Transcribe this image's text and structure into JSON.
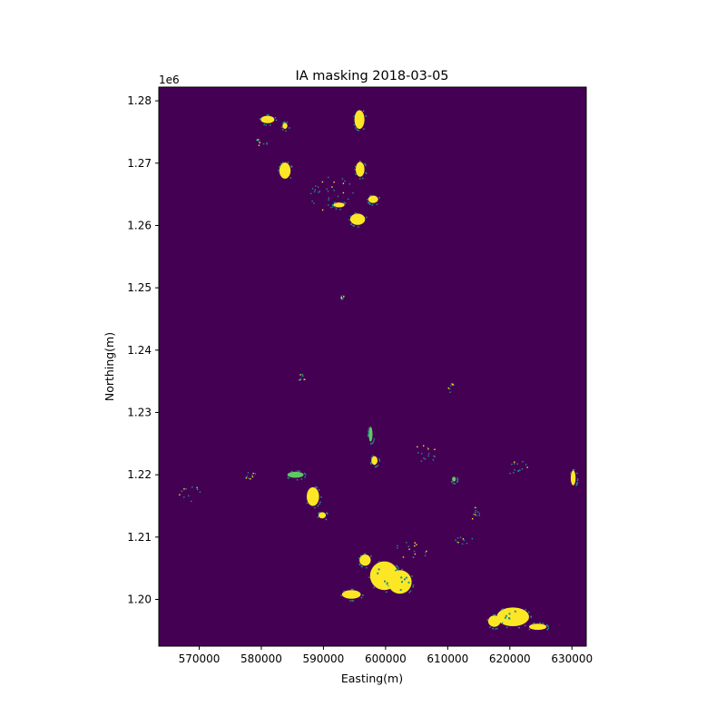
{
  "chart_data": {
    "type": "heatmap",
    "title": "IA masking 2018-03-05",
    "xlabel": "Easting(m)",
    "ylabel": "Northing(m)",
    "y_offset_label": "1e6",
    "xlim": [
      563500,
      632300
    ],
    "ylim": [
      1192500,
      1282200
    ],
    "x_ticks": [
      570000,
      580000,
      590000,
      600000,
      610000,
      620000,
      630000
    ],
    "x_tick_labels": [
      "570000",
      "580000",
      "590000",
      "600000",
      "610000",
      "620000",
      "630000"
    ],
    "y_ticks": [
      1200000,
      1210000,
      1220000,
      1230000,
      1240000,
      1250000,
      1260000,
      1270000,
      1280000
    ],
    "y_tick_labels": [
      "1.20",
      "1.21",
      "1.22",
      "1.23",
      "1.24",
      "1.25",
      "1.26",
      "1.27",
      "1.28"
    ],
    "grid": false,
    "colormap": "viridis",
    "colors": {
      "background": "#440154",
      "low_mask": "#21918c",
      "mid_mask": "#5ec962",
      "high_mask": "#fde725"
    },
    "mask_regions": [
      {
        "cx": 581000,
        "cy": 1277000,
        "rx": 1100,
        "ry": 600,
        "value": "high"
      },
      {
        "cx": 583800,
        "cy": 1276000,
        "rx": 400,
        "ry": 500,
        "value": "high"
      },
      {
        "cx": 583800,
        "cy": 1268800,
        "rx": 900,
        "ry": 1300,
        "value": "high"
      },
      {
        "cx": 595800,
        "cy": 1277000,
        "rx": 800,
        "ry": 1500,
        "value": "high"
      },
      {
        "cx": 595900,
        "cy": 1269000,
        "rx": 700,
        "ry": 1200,
        "value": "high"
      },
      {
        "cx": 598000,
        "cy": 1264200,
        "rx": 800,
        "ry": 600,
        "value": "high"
      },
      {
        "cx": 592500,
        "cy": 1263300,
        "rx": 900,
        "ry": 400,
        "value": "high"
      },
      {
        "cx": 595500,
        "cy": 1261000,
        "rx": 1200,
        "ry": 900,
        "value": "high"
      },
      {
        "cx": 588300,
        "cy": 1216500,
        "rx": 1000,
        "ry": 1500,
        "value": "high"
      },
      {
        "cx": 589800,
        "cy": 1213500,
        "rx": 600,
        "ry": 500,
        "value": "high"
      },
      {
        "cx": 594500,
        "cy": 1200800,
        "rx": 1500,
        "ry": 700,
        "value": "high"
      },
      {
        "cx": 599800,
        "cy": 1203800,
        "rx": 2300,
        "ry": 2300,
        "value": "high"
      },
      {
        "cx": 602300,
        "cy": 1202800,
        "rx": 1900,
        "ry": 1900,
        "value": "high"
      },
      {
        "cx": 596700,
        "cy": 1206300,
        "rx": 900,
        "ry": 900,
        "value": "high"
      },
      {
        "cx": 620500,
        "cy": 1197200,
        "rx": 2600,
        "ry": 1500,
        "value": "high"
      },
      {
        "cx": 617500,
        "cy": 1196500,
        "rx": 1000,
        "ry": 900,
        "value": "high"
      },
      {
        "cx": 624500,
        "cy": 1195600,
        "rx": 1400,
        "ry": 500,
        "value": "high"
      },
      {
        "cx": 630200,
        "cy": 1219500,
        "rx": 400,
        "ry": 1200,
        "value": "high"
      },
      {
        "cx": 598200,
        "cy": 1222300,
        "rx": 500,
        "ry": 700,
        "value": "high"
      },
      {
        "cx": 585500,
        "cy": 1220000,
        "rx": 1300,
        "ry": 500,
        "value": "mid"
      },
      {
        "cx": 597600,
        "cy": 1226500,
        "rx": 300,
        "ry": 1200,
        "value": "mid"
      },
      {
        "cx": 611000,
        "cy": 1219300,
        "rx": 300,
        "ry": 400,
        "value": "mid"
      },
      {
        "cx": 568500,
        "cy": 1217000,
        "rx": 1800,
        "ry": 1300,
        "value": "low"
      },
      {
        "cx": 578000,
        "cy": 1220000,
        "rx": 1200,
        "ry": 600,
        "value": "low"
      },
      {
        "cx": 604000,
        "cy": 1208000,
        "rx": 3000,
        "ry": 1500,
        "value": "low"
      },
      {
        "cx": 614000,
        "cy": 1214000,
        "rx": 1500,
        "ry": 1000,
        "value": "low"
      },
      {
        "cx": 621000,
        "cy": 1221000,
        "rx": 2000,
        "ry": 1500,
        "value": "low"
      },
      {
        "cx": 610500,
        "cy": 1234000,
        "rx": 500,
        "ry": 800,
        "value": "low"
      },
      {
        "cx": 586500,
        "cy": 1235500,
        "rx": 500,
        "ry": 1000,
        "value": "low"
      },
      {
        "cx": 580000,
        "cy": 1273500,
        "rx": 1200,
        "ry": 800,
        "value": "low"
      },
      {
        "cx": 591000,
        "cy": 1265000,
        "rx": 4000,
        "ry": 3000,
        "value": "low"
      },
      {
        "cx": 592800,
        "cy": 1248500,
        "rx": 500,
        "ry": 500,
        "value": "low"
      },
      {
        "cx": 612500,
        "cy": 1209500,
        "rx": 1500,
        "ry": 800,
        "value": "low"
      },
      {
        "cx": 606000,
        "cy": 1223500,
        "rx": 2500,
        "ry": 1500,
        "value": "low"
      }
    ]
  }
}
